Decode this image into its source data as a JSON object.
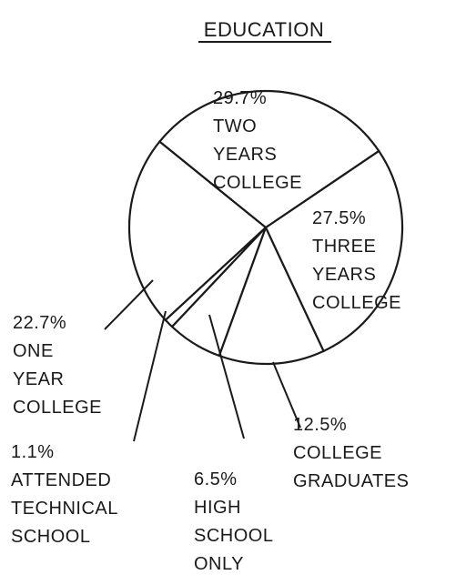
{
  "chart_data": {
    "type": "pie",
    "title": "EDUCATION",
    "categories": [
      [
        "TWO",
        "YEARS",
        "COLLEGE"
      ],
      [
        "THREE",
        "YEARS",
        "COLLEGE"
      ],
      [
        "COLLEGE",
        "GRADUATES"
      ],
      [
        "HIGH",
        "SCHOOL",
        "ONLY"
      ],
      [
        "ATTENDED",
        "TECHNICAL",
        "SCHOOL"
      ],
      [
        "ONE",
        "YEAR",
        "COLLEGE"
      ]
    ],
    "values": [
      29.7,
      27.5,
      12.5,
      6.5,
      1.1,
      22.7
    ],
    "value_labels": [
      "29.7%",
      "27.5%",
      "12.5%",
      "6.5%",
      "1.1%",
      "22.7%"
    ],
    "color": "#ffffff"
  }
}
